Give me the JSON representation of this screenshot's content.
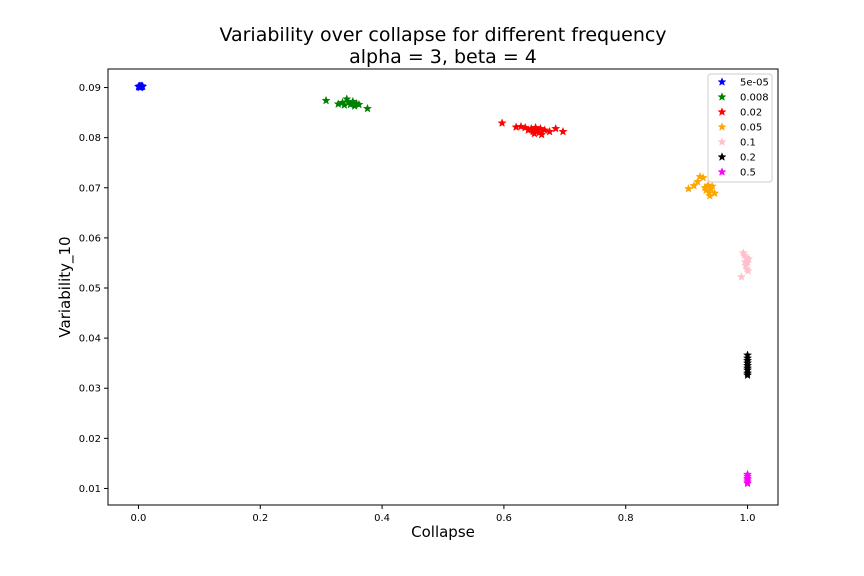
{
  "chart_data": {
    "type": "scatter",
    "title": "Variability over collapse for different frequency",
    "subtitle": "alpha = 3, beta = 4",
    "xlabel": "Collapse",
    "ylabel": "Variability_10",
    "xlim": [
      -0.05,
      1.05
    ],
    "ylim": [
      0.0067,
      0.0937
    ],
    "xticks": [
      0.0,
      0.2,
      0.4,
      0.6,
      0.8,
      1.0
    ],
    "xtick_labels": [
      "0.0",
      "0.2",
      "0.4",
      "0.6",
      "0.8",
      "1.0"
    ],
    "yticks": [
      0.01,
      0.02,
      0.03,
      0.04,
      0.05,
      0.06,
      0.07,
      0.08,
      0.09
    ],
    "ytick_labels": [
      "0.01",
      "0.02",
      "0.03",
      "0.04",
      "0.05",
      "0.06",
      "0.07",
      "0.08",
      "0.09"
    ],
    "grid": false,
    "legend_position": "top-right",
    "marker": "star",
    "series": [
      {
        "name": "5e-05",
        "color": "#0000ff",
        "points": [
          [
            0.0,
            0.0902
          ],
          [
            0.002,
            0.0903
          ],
          [
            0.004,
            0.0901
          ],
          [
            0.005,
            0.0902
          ],
          [
            0.003,
            0.09
          ],
          [
            0.006,
            0.0903
          ],
          [
            0.001,
            0.0901
          ],
          [
            0.007,
            0.0902
          ],
          [
            0.004,
            0.0903
          ]
        ]
      },
      {
        "name": "0.008",
        "color": "#008000",
        "points": [
          [
            0.308,
            0.0874
          ],
          [
            0.328,
            0.0867
          ],
          [
            0.335,
            0.087
          ],
          [
            0.338,
            0.0865
          ],
          [
            0.342,
            0.0877
          ],
          [
            0.345,
            0.087
          ],
          [
            0.348,
            0.0866
          ],
          [
            0.352,
            0.0872
          ],
          [
            0.355,
            0.0863
          ],
          [
            0.358,
            0.0868
          ],
          [
            0.362,
            0.0866
          ],
          [
            0.376,
            0.0858
          ]
        ]
      },
      {
        "name": "0.02",
        "color": "#ff0000",
        "points": [
          [
            0.597,
            0.0829
          ],
          [
            0.62,
            0.0821
          ],
          [
            0.628,
            0.0822
          ],
          [
            0.635,
            0.082
          ],
          [
            0.64,
            0.0815
          ],
          [
            0.645,
            0.0818
          ],
          [
            0.648,
            0.0812
          ],
          [
            0.65,
            0.0808
          ],
          [
            0.652,
            0.082
          ],
          [
            0.655,
            0.0814
          ],
          [
            0.658,
            0.081
          ],
          [
            0.66,
            0.0818
          ],
          [
            0.662,
            0.0806
          ],
          [
            0.667,
            0.0815
          ],
          [
            0.675,
            0.0812
          ],
          [
            0.685,
            0.0818
          ],
          [
            0.697,
            0.0812
          ]
        ]
      },
      {
        "name": "0.05",
        "color": "#ffa500",
        "points": [
          [
            0.903,
            0.0698
          ],
          [
            0.912,
            0.0704
          ],
          [
            0.918,
            0.0712
          ],
          [
            0.922,
            0.0722
          ],
          [
            0.927,
            0.072
          ],
          [
            0.93,
            0.07
          ],
          [
            0.932,
            0.0695
          ],
          [
            0.935,
            0.0705
          ],
          [
            0.937,
            0.069
          ],
          [
            0.938,
            0.0684
          ],
          [
            0.94,
            0.0698
          ],
          [
            0.942,
            0.0703
          ],
          [
            0.946,
            0.0689
          ]
        ]
      },
      {
        "name": "0.1",
        "color": "#ffc0cb",
        "points": [
          [
            0.99,
            0.0522
          ],
          [
            0.993,
            0.057
          ],
          [
            0.995,
            0.0565
          ],
          [
            0.996,
            0.0552
          ],
          [
            0.997,
            0.0545
          ],
          [
            0.998,
            0.056
          ],
          [
            0.999,
            0.0538
          ],
          [
            1.0,
            0.055
          ],
          [
            1.001,
            0.0534
          ],
          [
            1.002,
            0.0558
          ]
        ]
      },
      {
        "name": "0.2",
        "color": "#000000",
        "points": [
          [
            1.0,
            0.0366
          ],
          [
            1.0,
            0.036
          ],
          [
            1.0,
            0.0355
          ],
          [
            1.0,
            0.035
          ],
          [
            1.0,
            0.0345
          ],
          [
            1.0,
            0.034
          ],
          [
            1.0,
            0.0336
          ],
          [
            1.0,
            0.033
          ],
          [
            1.0,
            0.0326
          ]
        ]
      },
      {
        "name": "0.5",
        "color": "#ff00ff",
        "points": [
          [
            1.0,
            0.0128
          ],
          [
            1.0,
            0.0124
          ],
          [
            1.0,
            0.012
          ],
          [
            1.0,
            0.0117
          ],
          [
            1.0,
            0.0113
          ],
          [
            1.0,
            0.011
          ]
        ]
      }
    ]
  }
}
